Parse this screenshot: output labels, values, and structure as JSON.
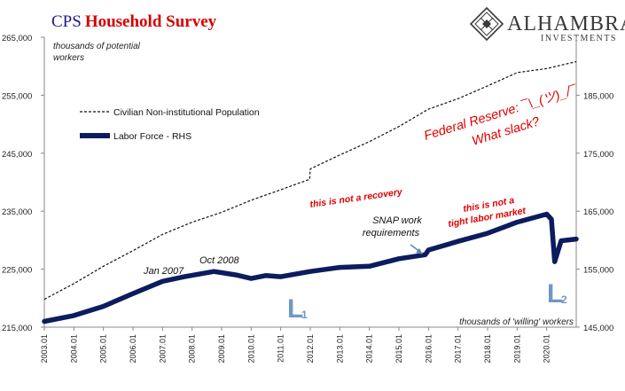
{
  "title": {
    "part1": "CPS",
    "part2": "Household Survey"
  },
  "logo": {
    "name": "ALHAMBRA",
    "sub": "INVESTMENTS"
  },
  "left_axis_note": [
    "thousands of potential",
    "workers"
  ],
  "right_axis_note": "thousands of 'willing' workers",
  "legend": [
    {
      "label": "Civilian Non-institutional Population",
      "style": "dashed"
    },
    {
      "label": "Labor Force - RHS",
      "style": "thick"
    }
  ],
  "annotations": {
    "jan2007": "Jan  2007",
    "oct2008": "Oct 2008",
    "snap": [
      "SNAP work",
      "requirements"
    ],
    "not_recovery": "this is not a recovery",
    "not_tight": [
      "this is not a",
      "tight labor market"
    ],
    "fed": [
      "Federal Reserve: ¯\\_(ツ)_/¯",
      "What slack?"
    ],
    "l1": {
      "big": "L",
      "sub": "1"
    },
    "l2": {
      "big": "L",
      "sub": "2"
    }
  },
  "colors": {
    "population": "#111111",
    "labor_force": "#0c1c5e",
    "red": "#e00000",
    "l_blue": "#6f98c6",
    "title_blue": "#1a1a8c"
  },
  "chart_data": {
    "type": "line",
    "title": "CPS Household Survey",
    "y_left": {
      "label": "thousands of potential workers",
      "range": [
        215000,
        265000
      ],
      "ticks": [
        "265,000",
        "255,000",
        "245,000",
        "235,000",
        "225,000",
        "215,000"
      ]
    },
    "y_right": {
      "label": "thousands of 'willing' workers",
      "range": [
        145000,
        195000
      ],
      "ticks": [
        "185,000",
        "175,000",
        "165,000",
        "155,000",
        "145,000"
      ]
    },
    "x_ticks": [
      "2003.01",
      "2004.01",
      "2005.01",
      "2006.01",
      "2007.01",
      "2008.01",
      "2009.01",
      "2010.01",
      "2011.01",
      "2012.01",
      "2013.01",
      "2014.01",
      "2015.01",
      "2016.01",
      "2017.01",
      "2018.01",
      "2019.01",
      "2020.01"
    ],
    "x_range": [
      "2003.01",
      "2021.01"
    ],
    "series": [
      {
        "name": "Civilian Non-institutional Population",
        "axis": "left",
        "points": [
          [
            "2003.01",
            219800
          ],
          [
            "2004.01",
            222500
          ],
          [
            "2005.01",
            225500
          ],
          [
            "2006.01",
            228200
          ],
          [
            "2007.01",
            231000
          ],
          [
            "2008.01",
            233100
          ],
          [
            "2009.01",
            234800
          ],
          [
            "2010.01",
            236900
          ],
          [
            "2011.01",
            238700
          ],
          [
            "2011.99",
            240500
          ],
          [
            "2012.01",
            242300
          ],
          [
            "2013.01",
            244700
          ],
          [
            "2014.01",
            247000
          ],
          [
            "2015.01",
            249600
          ],
          [
            "2016.01",
            252600
          ],
          [
            "2017.01",
            254400
          ],
          [
            "2018.01",
            256600
          ],
          [
            "2019.01",
            258900
          ],
          [
            "2020.01",
            259600
          ],
          [
            "2021.01",
            260800
          ]
        ]
      },
      {
        "name": "Labor Force - RHS",
        "axis": "right",
        "points": [
          [
            "2003.01",
            146000
          ],
          [
            "2004.01",
            147000
          ],
          [
            "2005.01",
            148600
          ],
          [
            "2006.01",
            150800
          ],
          [
            "2007.01",
            152900
          ],
          [
            "2007.75",
            153700
          ],
          [
            "2008.75",
            154600
          ],
          [
            "2009.5",
            154000
          ],
          [
            "2010.01",
            153400
          ],
          [
            "2010.5",
            153900
          ],
          [
            "2011.01",
            153700
          ],
          [
            "2012.01",
            154600
          ],
          [
            "2013.01",
            155300
          ],
          [
            "2014.01",
            155500
          ],
          [
            "2015.01",
            156800
          ],
          [
            "2015.9",
            157500
          ],
          [
            "2016.01",
            158300
          ],
          [
            "2017.01",
            159800
          ],
          [
            "2018.01",
            161200
          ],
          [
            "2019.01",
            163100
          ],
          [
            "2020.01",
            164500
          ],
          [
            "2020.17",
            163600
          ],
          [
            "2020.28",
            156300
          ],
          [
            "2020.5",
            159900
          ],
          [
            "2021.01",
            160200
          ]
        ]
      }
    ]
  }
}
